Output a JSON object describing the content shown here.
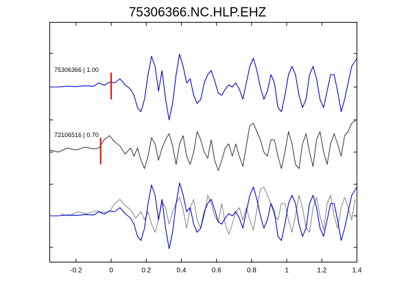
{
  "page": {
    "title": "75306366.NC.HLP.EHZ"
  },
  "chart_data": {
    "type": "line",
    "title": "75306366.NC.HLP.EHZ",
    "xlabel": "",
    "ylabel": "",
    "xlim": [
      -0.35,
      1.4
    ],
    "x_ticks": [
      -0.2,
      0,
      0.2,
      0.4,
      0.6,
      0.8,
      1,
      1.2,
      1.4
    ],
    "x_tick_labels": [
      "-0.2",
      "0",
      "0.2",
      "0.4",
      "0.6",
      "0.8",
      "1",
      "1.2",
      "1.4"
    ],
    "grid": false,
    "colors": {
      "trace1": "#0000cc",
      "trace2": "#333333",
      "trace2_overlay": "#808080",
      "pick": "#ee0000"
    },
    "traces": [
      {
        "label": "75306366 | 1.00",
        "pick_time": 0.0,
        "x": [
          -0.35,
          -0.3,
          -0.25,
          -0.2,
          -0.15,
          -0.1,
          -0.07,
          -0.04,
          -0.01,
          0.02,
          0.05,
          0.08,
          0.11,
          0.13,
          0.15,
          0.17,
          0.19,
          0.21,
          0.23,
          0.25,
          0.27,
          0.29,
          0.31,
          0.33,
          0.35,
          0.37,
          0.39,
          0.41,
          0.43,
          0.45,
          0.47,
          0.49,
          0.51,
          0.53,
          0.55,
          0.57,
          0.59,
          0.61,
          0.63,
          0.65,
          0.67,
          0.69,
          0.71,
          0.73,
          0.75,
          0.77,
          0.79,
          0.81,
          0.83,
          0.85,
          0.87,
          0.89,
          0.91,
          0.93,
          0.95,
          0.97,
          0.99,
          1.01,
          1.03,
          1.05,
          1.07,
          1.09,
          1.11,
          1.13,
          1.15,
          1.17,
          1.19,
          1.21,
          1.23,
          1.25,
          1.27,
          1.29,
          1.31,
          1.33,
          1.35,
          1.37,
          1.4
        ],
        "y": [
          0,
          0,
          0.02,
          0.01,
          0.03,
          0.02,
          0.1,
          0.04,
          0.12,
          0.1,
          0.2,
          0.05,
          -0.05,
          -0.2,
          -0.5,
          -0.6,
          -0.3,
          0.3,
          0.75,
          0.5,
          -0.1,
          0.4,
          -0.3,
          -0.8,
          -0.4,
          0.3,
          0.8,
          0.5,
          0.1,
          0.2,
          -0.2,
          -0.4,
          -0.3,
          0.1,
          0.3,
          0.4,
          0.15,
          -0.15,
          -0.2,
          -0.05,
          0.05,
          0,
          0.1,
          -0.05,
          -0.3,
          0.1,
          0.5,
          0.7,
          0.4,
          0,
          -0.3,
          -0.1,
          0.3,
          0.1,
          -0.5,
          -0.6,
          -0.2,
          0.3,
          0.5,
          0.3,
          -0.2,
          -0.5,
          -0.3,
          0.3,
          0.5,
          0.2,
          -0.3,
          -0.5,
          -0.1,
          0.3,
          0.3,
          -0.1,
          -0.6,
          -0.3,
          0.1,
          0.5,
          0.7
        ]
      },
      {
        "label": "72106516 | 0.70",
        "pick_time": -0.06,
        "x": [
          -0.35,
          -0.3,
          -0.25,
          -0.2,
          -0.15,
          -0.1,
          -0.07,
          -0.04,
          -0.01,
          0.02,
          0.05,
          0.08,
          0.11,
          0.13,
          0.15,
          0.17,
          0.19,
          0.21,
          0.23,
          0.25,
          0.27,
          0.29,
          0.31,
          0.33,
          0.35,
          0.37,
          0.39,
          0.41,
          0.43,
          0.45,
          0.47,
          0.49,
          0.51,
          0.53,
          0.55,
          0.57,
          0.59,
          0.61,
          0.63,
          0.65,
          0.67,
          0.69,
          0.71,
          0.73,
          0.75,
          0.77,
          0.79,
          0.81,
          0.83,
          0.85,
          0.87,
          0.89,
          0.91,
          0.93,
          0.95,
          0.97,
          0.99,
          1.01,
          1.03,
          1.05,
          1.07,
          1.09,
          1.11,
          1.13,
          1.15,
          1.17,
          1.19,
          1.21,
          1.23,
          1.25,
          1.27,
          1.29,
          1.31,
          1.33,
          1.35,
          1.37,
          1.4
        ],
        "y": [
          0.05,
          0,
          0.1,
          0.05,
          0.12,
          0.08,
          0.1,
          0.3,
          0.4,
          0.25,
          0.15,
          -0.05,
          0.1,
          -0.1,
          0.1,
          -0.2,
          -0.4,
          -0.1,
          0.35,
          0.2,
          -0.2,
          0.1,
          0.3,
          0.45,
          0.15,
          -0.3,
          0.2,
          0.4,
          -0.1,
          -0.3,
          0,
          0.5,
          0.3,
          0,
          -0.15,
          0.3,
          -0.2,
          -0.45,
          -0.2,
          0.1,
          0.2,
          -0.1,
          0.2,
          -0.1,
          -0.35,
          0.15,
          0.65,
          0.7,
          0.5,
          0.3,
          0,
          -0.1,
          0.3,
          0.3,
          -0.1,
          -0.4,
          0,
          0.5,
          0.2,
          -0.3,
          -0.4,
          0.2,
          0.45,
          0,
          -0.35,
          0.3,
          0.5,
          0,
          -0.3,
          0.2,
          0.45,
          0.2,
          -0.1,
          0.4,
          0.5,
          0.7,
          0.8
        ]
      }
    ]
  }
}
